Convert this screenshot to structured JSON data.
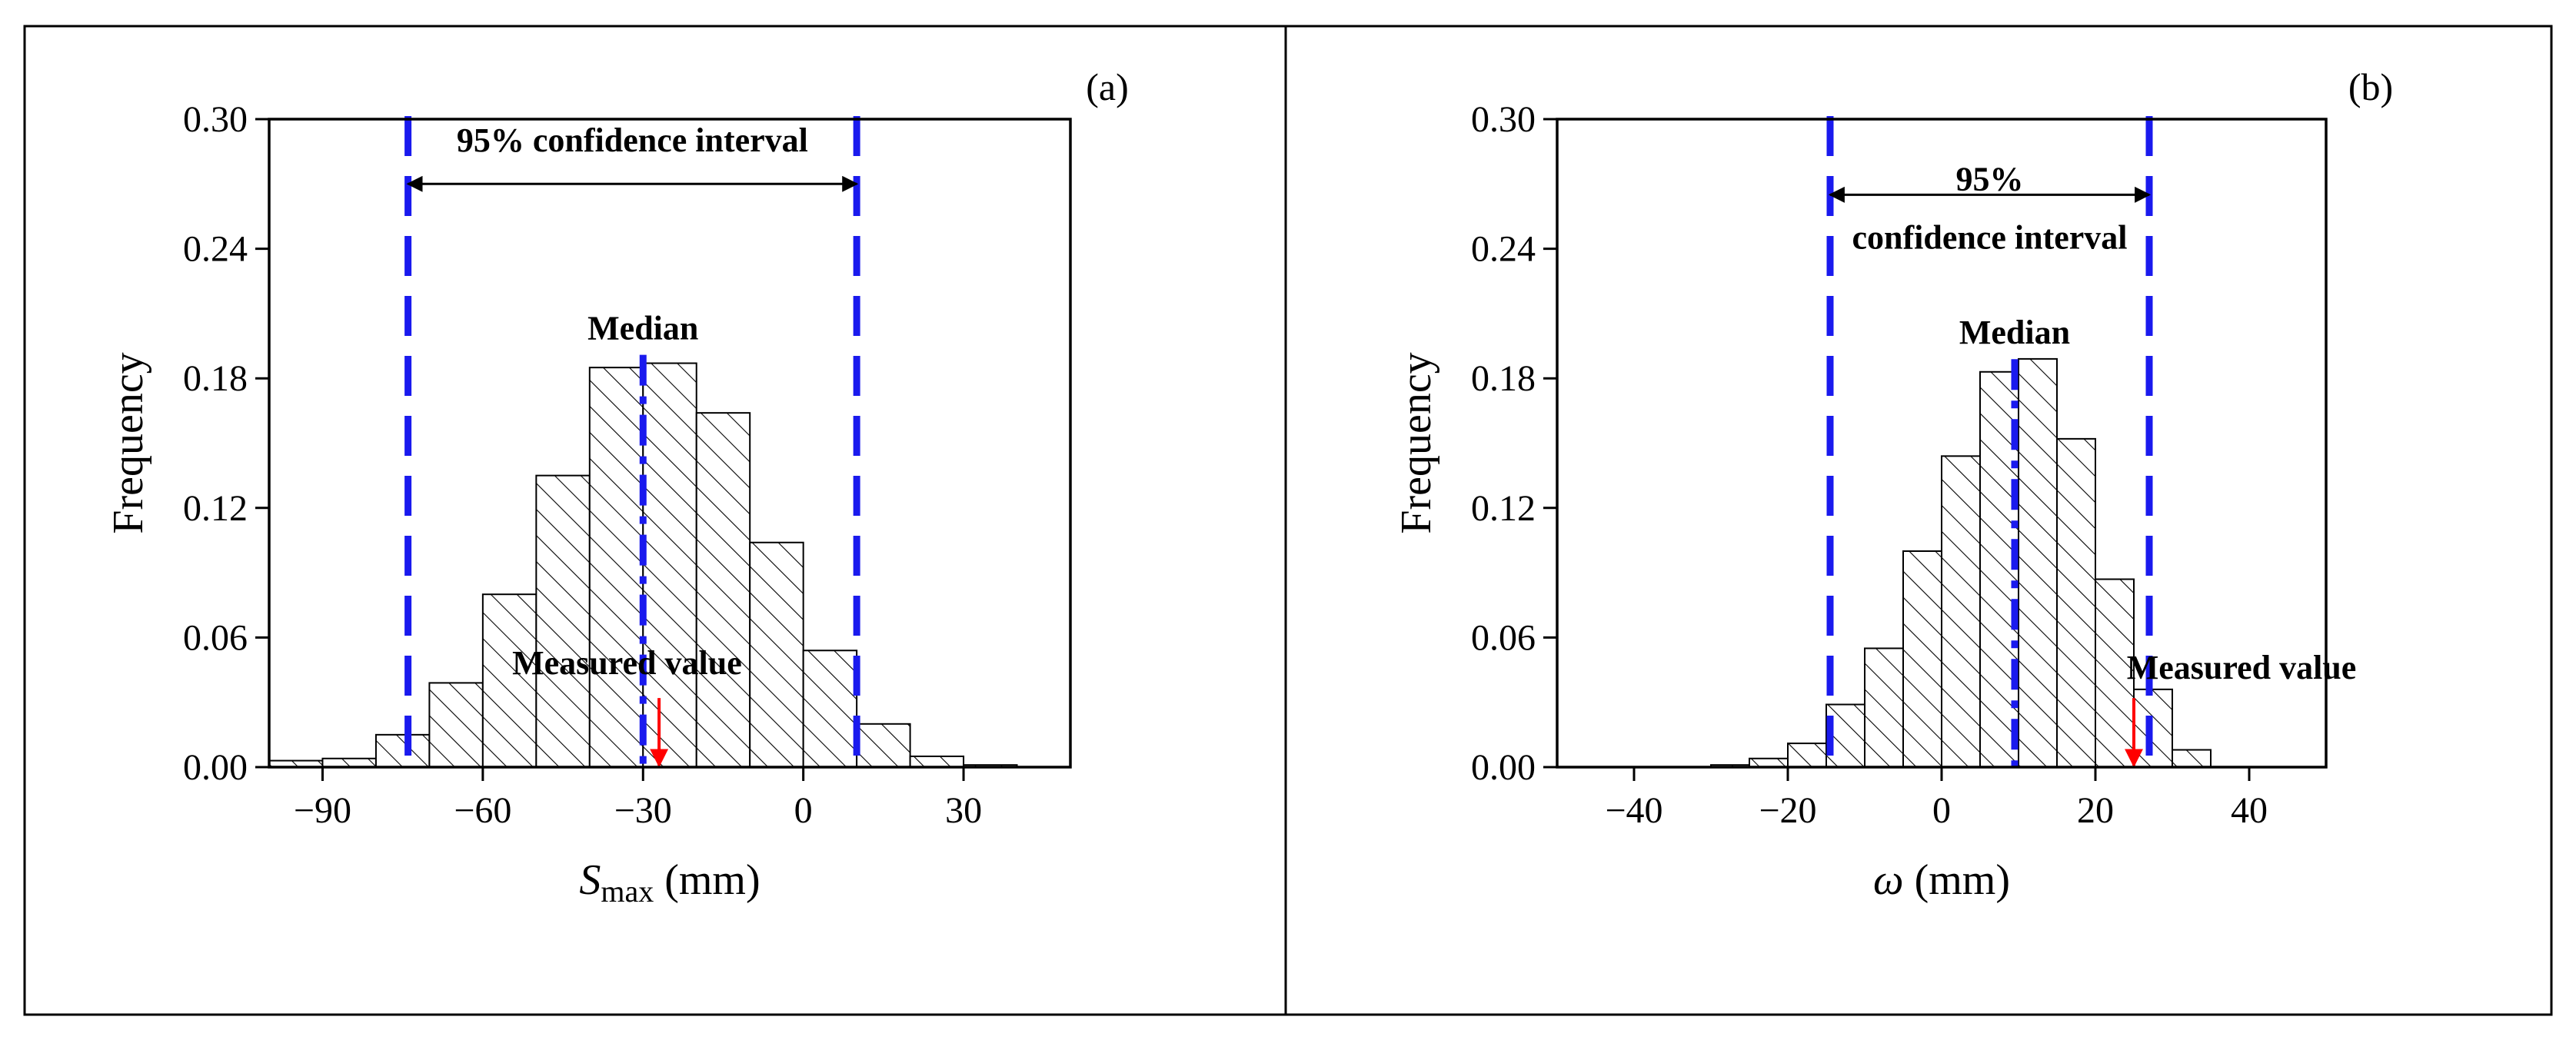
{
  "chart_data": [
    {
      "type": "bar",
      "panel_label": "(a)",
      "xlabel_symbol": "S",
      "xlabel_subscript": "max",
      "xlabel_unit": " (mm)",
      "ylabel": "Frequency",
      "xlim": [
        -100,
        50
      ],
      "ylim": [
        0,
        0.3
      ],
      "xticks": [
        -90,
        -60,
        -30,
        0,
        30
      ],
      "yticks": [
        0.0,
        0.06,
        0.12,
        0.18,
        0.24,
        0.3
      ],
      "ytick_labels": [
        "0.00",
        "0.06",
        "0.12",
        "0.18",
        "0.24",
        "0.30"
      ],
      "bin_edges": [
        -100,
        -90,
        -80,
        -70,
        -60,
        -50,
        -40,
        -30,
        -20,
        -10,
        0,
        10,
        20,
        30,
        40
      ],
      "values": [
        0.003,
        0.004,
        0.015,
        0.039,
        0.08,
        0.135,
        0.185,
        0.187,
        0.164,
        0.104,
        0.054,
        0.02,
        0.005,
        0.001
      ],
      "ci_lower": -74,
      "ci_upper": 10,
      "median": -30,
      "measured": -27,
      "ci_label_lines": [
        "95% confidence interval"
      ],
      "ci_arrow_y": 0.27,
      "ci_label_y": [
        0.29
      ],
      "median_label": "Median",
      "median_label_y": 0.198,
      "measured_label": "Measured value",
      "measured_label_x": -33,
      "measured_label_y": 0.043,
      "grid": false
    },
    {
      "type": "bar",
      "panel_label": "(b)",
      "xlabel_symbol": "ω",
      "xlabel_subscript": "",
      "xlabel_unit": " (mm)",
      "ylabel": "Frequency",
      "xlim": [
        -50,
        50
      ],
      "ylim": [
        0,
        0.3
      ],
      "xticks": [
        -40,
        -20,
        0,
        20,
        40
      ],
      "yticks": [
        0.0,
        0.06,
        0.12,
        0.18,
        0.24,
        0.3
      ],
      "ytick_labels": [
        "0.00",
        "0.06",
        "0.12",
        "0.18",
        "0.24",
        "0.30"
      ],
      "bin_edges": [
        -30,
        -25,
        -20,
        -15,
        -10,
        -5,
        0,
        5,
        10,
        15,
        20,
        25,
        30,
        35
      ],
      "values": [
        0.001,
        0.004,
        0.011,
        0.029,
        0.055,
        0.1,
        0.144,
        0.183,
        0.189,
        0.152,
        0.087,
        0.036,
        0.008
      ],
      "ci_lower": -14.5,
      "ci_upper": 27,
      "median": 9.5,
      "measured": 25,
      "ci_label_lines": [
        "95%",
        "confidence interval"
      ],
      "ci_arrow_y": 0.265,
      "ci_label_y": [
        0.272,
        0.245
      ],
      "median_label": "Median",
      "median_label_y": 0.196,
      "measured_label": "Measured value",
      "measured_label_x": 39,
      "measured_label_y": 0.041,
      "grid": false
    }
  ],
  "colors": {
    "ci_line": "#1a1aee",
    "median_line": "#1a1aee",
    "measured_arrow": "#ff0000",
    "bar_fill_pattern": "hatched",
    "bar_edge": "#000000"
  }
}
